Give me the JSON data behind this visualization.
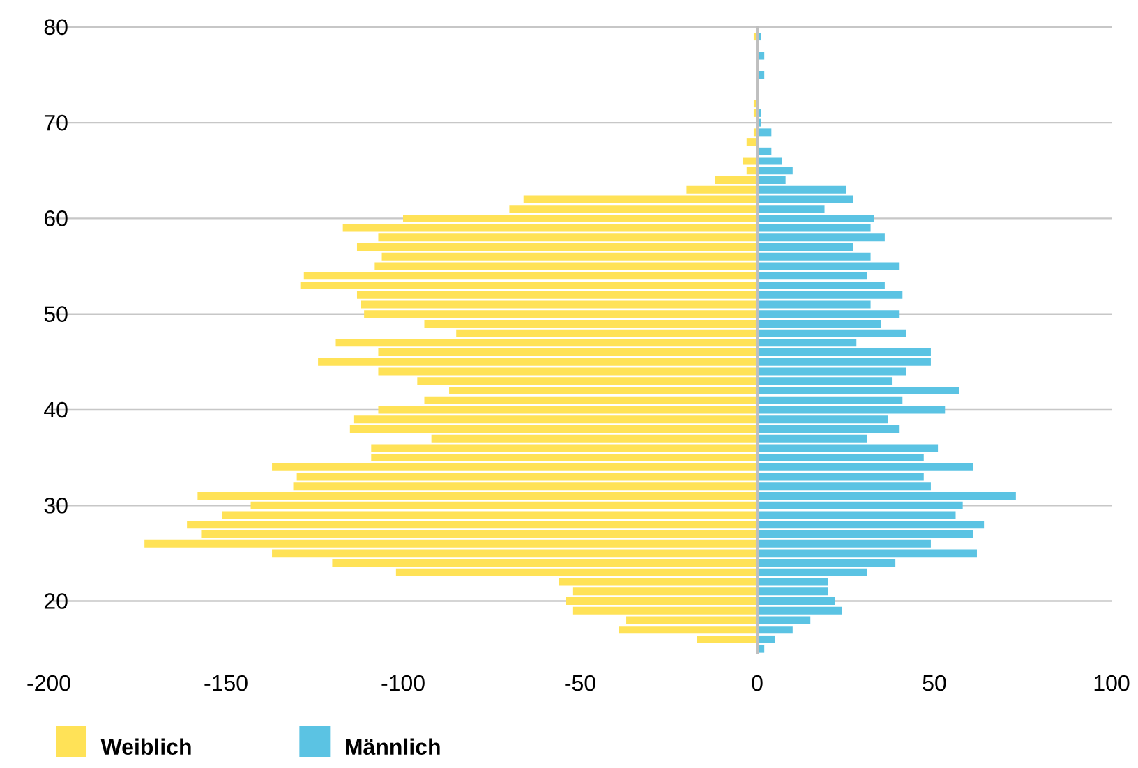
{
  "chart_data": {
    "type": "bar",
    "orientation": "horizontal",
    "x": [
      15,
      16,
      17,
      18,
      19,
      20,
      21,
      22,
      23,
      24,
      25,
      26,
      27,
      28,
      29,
      30,
      31,
      32,
      33,
      34,
      35,
      36,
      37,
      38,
      39,
      40,
      41,
      42,
      43,
      44,
      45,
      46,
      47,
      48,
      49,
      50,
      51,
      52,
      53,
      54,
      55,
      56,
      57,
      58,
      59,
      60,
      61,
      62,
      63,
      64,
      65,
      66,
      67,
      68,
      69,
      70,
      71,
      72,
      73,
      74,
      75,
      76,
      77,
      78,
      79
    ],
    "series": [
      {
        "name": "Weiblich",
        "color": "#ffe257",
        "values": [
          null,
          -17,
          -39,
          -37,
          -52,
          -54,
          -52,
          -56,
          -102,
          -120,
          -137,
          -173,
          -157,
          -161,
          -151,
          -143,
          -158,
          -131,
          -130,
          -137,
          -109,
          -109,
          -92,
          -115,
          -114,
          -107,
          -94,
          -87,
          -96,
          -107,
          -124,
          -107,
          -119,
          -85,
          -94,
          -111,
          -112,
          -113,
          -129,
          -128,
          -108,
          -106,
          -113,
          -107,
          -117,
          -100,
          -70,
          -66,
          -20,
          -12,
          -3,
          -4,
          null,
          -3,
          -1,
          null,
          -1,
          -1,
          null,
          null,
          null,
          null,
          null,
          null,
          -1
        ]
      },
      {
        "name": "Männlich",
        "color": "#5bc3e3",
        "values": [
          2,
          5,
          10,
          15,
          24,
          22,
          20,
          20,
          31,
          39,
          62,
          49,
          61,
          64,
          56,
          58,
          73,
          49,
          47,
          61,
          47,
          51,
          31,
          40,
          37,
          53,
          41,
          57,
          38,
          42,
          49,
          49,
          28,
          42,
          35,
          40,
          32,
          41,
          36,
          31,
          40,
          32,
          27,
          36,
          32,
          33,
          19,
          27,
          25,
          8,
          10,
          7,
          4,
          null,
          4,
          1,
          1,
          null,
          null,
          null,
          2,
          null,
          2,
          null,
          1
        ]
      }
    ],
    "xlim": [
      -200,
      100
    ],
    "xticks": [
      -200,
      -150,
      -100,
      -50,
      0,
      50,
      100
    ],
    "ylim": [
      14.5,
      80.5
    ],
    "yticks": [
      20,
      30,
      40,
      50,
      60,
      70,
      80
    ],
    "grid": "y",
    "legend": "bottom left",
    "stacked": true
  }
}
